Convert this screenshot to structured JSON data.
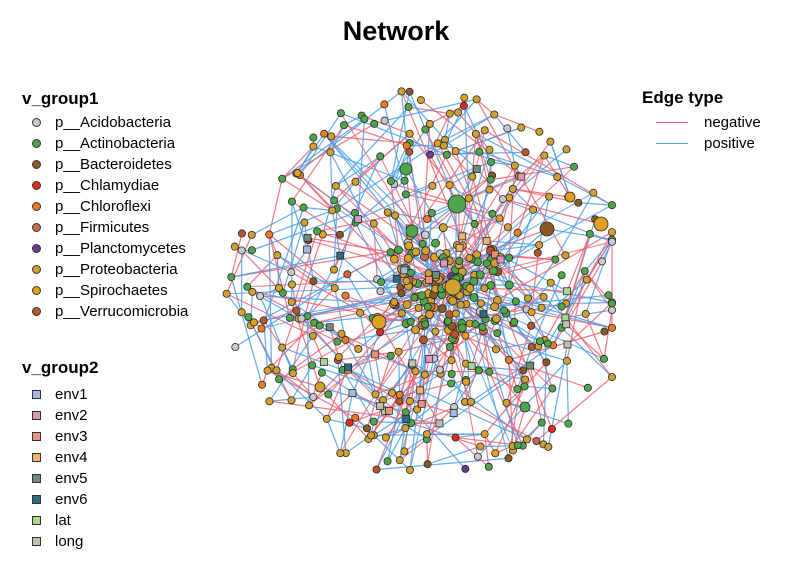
{
  "title": "Network",
  "legend_group1": {
    "title": "v_group1",
    "items": [
      {
        "label": "p__Acidobacteria",
        "color": "#c8c8d2"
      },
      {
        "label": "p__Actinobacteria",
        "color": "#4fa64a"
      },
      {
        "label": "p__Bacteroidetes",
        "color": "#8a5a24"
      },
      {
        "label": "p__Chlamydiae",
        "color": "#e02a1e"
      },
      {
        "label": "p__Chloroflexi",
        "color": "#ee7a22"
      },
      {
        "label": "p__Firmicutes",
        "color": "#c86a4a"
      },
      {
        "label": "p__Planctomycetes",
        "color": "#6a3b8f"
      },
      {
        "label": "p__Proteobacteria",
        "color": "#d0a030"
      },
      {
        "label": "p__Spirochaetes",
        "color": "#e0a020"
      },
      {
        "label": "p__Verrucomicrobia",
        "color": "#b8552a"
      }
    ]
  },
  "legend_group2": {
    "title": "v_group2",
    "items": [
      {
        "label": "env1",
        "color": "#a8b8e0"
      },
      {
        "label": "env2",
        "color": "#d89ab8"
      },
      {
        "label": "env3",
        "color": "#f0907a"
      },
      {
        "label": "env4",
        "color": "#f0b070"
      },
      {
        "label": "env5",
        "color": "#6e8c7c"
      },
      {
        "label": "env6",
        "color": "#2a6e80"
      },
      {
        "label": "lat",
        "color": "#a8d890"
      },
      {
        "label": "long",
        "color": "#c0c0b0"
      }
    ]
  },
  "legend_edge": {
    "title": "Edge type",
    "items": [
      {
        "label": "negative",
        "color": "#f06070"
      },
      {
        "label": "positive",
        "color": "#4a9ee8"
      }
    ]
  },
  "colors": {
    "edge_negative": "#f06070",
    "edge_positive": "#4a9ee8",
    "node_border": "#2a2a2a"
  }
}
